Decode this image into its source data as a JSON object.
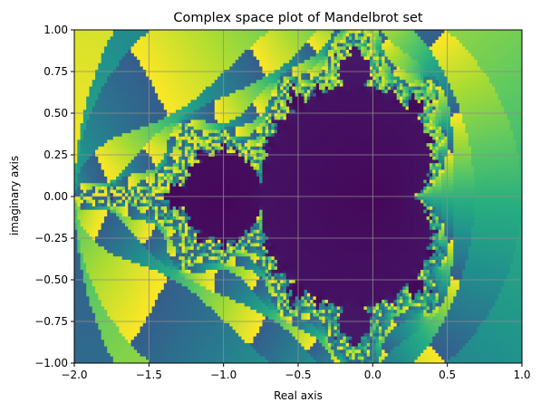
{
  "chart_data": {
    "type": "heatmap",
    "title": "Complex space plot of Mandelbrot set",
    "xlabel": "Real axis",
    "ylabel": "imaginary axis",
    "xlim": [
      -2.0,
      1.0
    ],
    "ylim": [
      -1.0,
      1.0
    ],
    "x_ticks": [
      {
        "value": -2.0,
        "label": "−2.0"
      },
      {
        "value": -1.5,
        "label": "−1.5"
      },
      {
        "value": -1.0,
        "label": "−1.0"
      },
      {
        "value": -0.5,
        "label": "−0.5"
      },
      {
        "value": 0.0,
        "label": "0.0"
      },
      {
        "value": 0.5,
        "label": "0.5"
      },
      {
        "value": 1.0,
        "label": "1.0"
      }
    ],
    "y_ticks": [
      {
        "value": 1.0,
        "label": "1.00"
      },
      {
        "value": 0.75,
        "label": "0.75"
      },
      {
        "value": 0.5,
        "label": "0.50"
      },
      {
        "value": 0.25,
        "label": "0.25"
      },
      {
        "value": 0.0,
        "label": "0.00"
      },
      {
        "value": -0.25,
        "label": "−0.25"
      },
      {
        "value": -0.5,
        "label": "−0.50"
      },
      {
        "value": -0.75,
        "label": "−0.75"
      },
      {
        "value": -1.0,
        "label": "−1.00"
      }
    ],
    "grid": true,
    "colormap": "viridis",
    "grid_color": "#8c8c8c",
    "escape_radius": 2,
    "max_iterations": 40,
    "resolution": [
      150,
      100
    ]
  }
}
